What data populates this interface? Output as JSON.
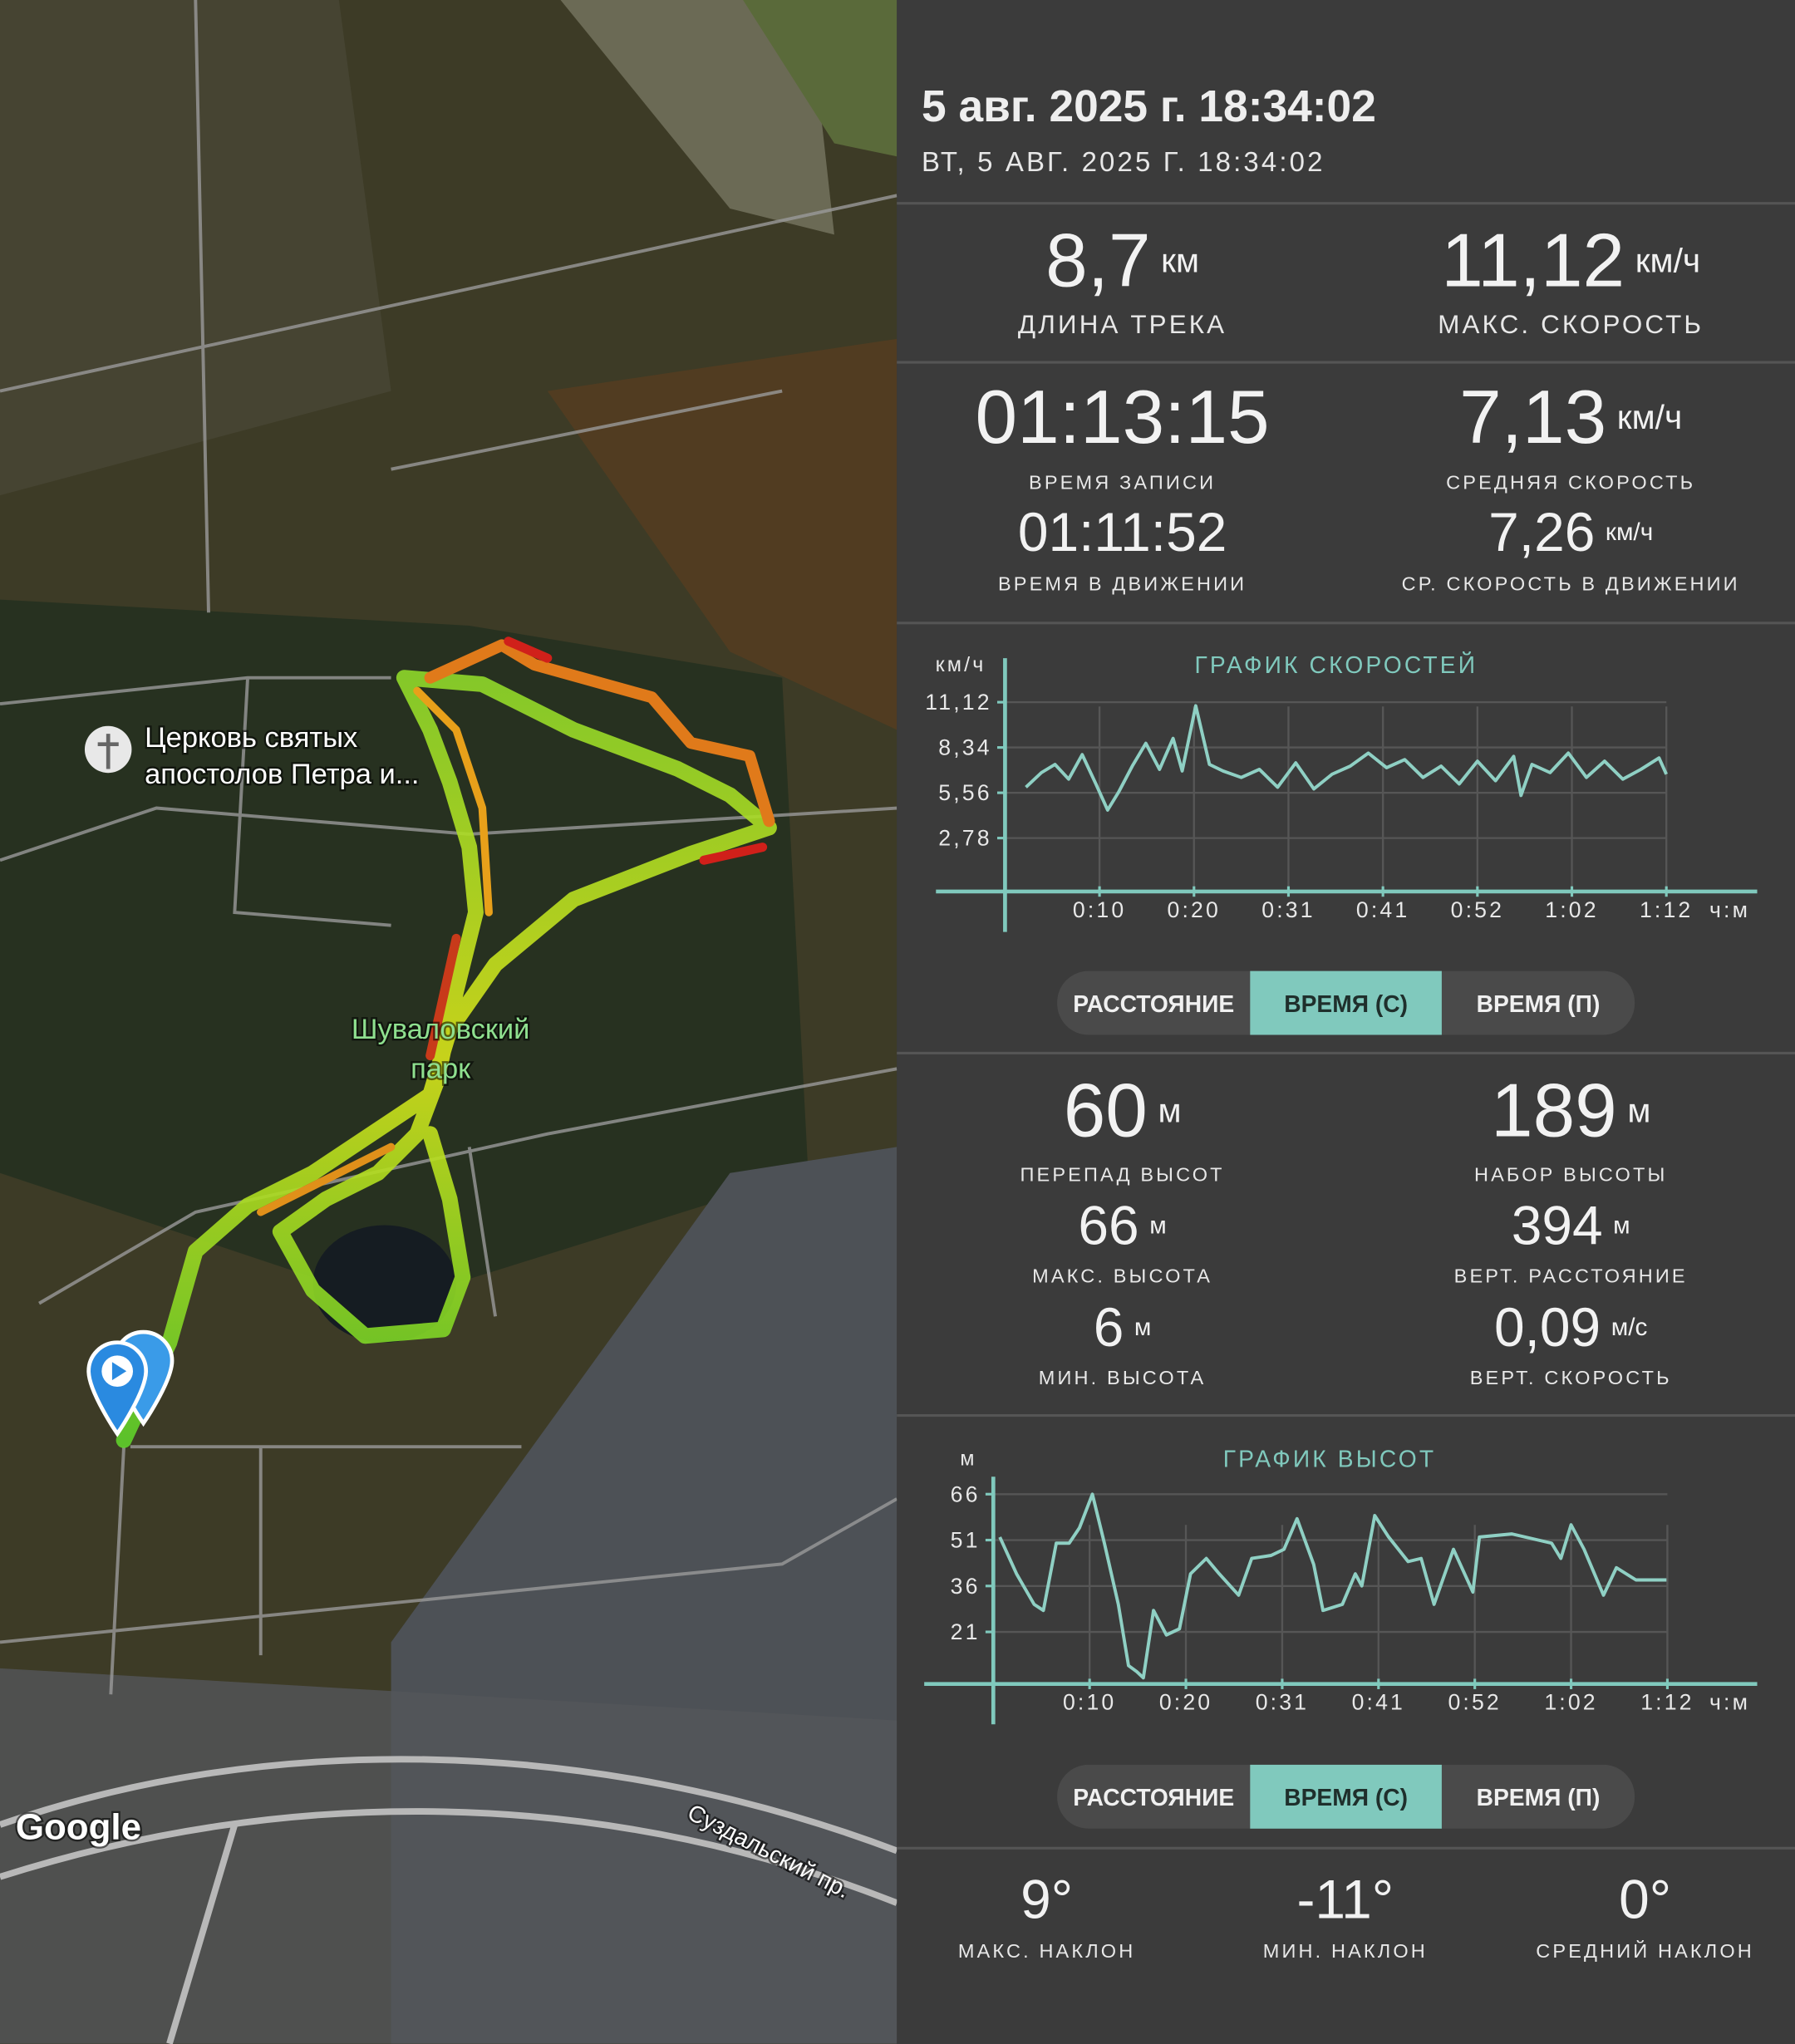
{
  "header": {
    "title": "5 авг. 2025 г. 18:34:02",
    "subtitle": "ВТ, 5 АВГ. 2025 Г. 18:34:02"
  },
  "map": {
    "labels": [
      "Церковь святых",
      "апостолов Петра и...",
      "Шуваловский",
      "парк",
      "Google",
      "Суздальский пр."
    ]
  },
  "summary": [
    {
      "value": "8,7",
      "unit": "км",
      "label": "ДЛИНА ТРЕКА"
    },
    {
      "value": "11,12",
      "unit": "км/ч",
      "label": "МАКС. СКОРОСТЬ"
    },
    {
      "value": "01:13:15",
      "label": "ВРЕМЯ ЗАПИСИ"
    },
    {
      "value": "7,13",
      "unit": "км/ч",
      "label": "СРЕДНЯЯ СКОРОСТЬ"
    },
    {
      "value": "01:11:52",
      "label": "ВРЕМЯ В ДВИЖЕНИИ"
    },
    {
      "value": "7,26",
      "unit": "км/ч",
      "label": "СР. СКОРОСТЬ В ДВИЖЕНИИ"
    }
  ],
  "elevation_stats": [
    {
      "value": "60",
      "unit": "м",
      "label": "ПЕРЕПАД ВЫСОТ"
    },
    {
      "value": "189",
      "unit": "м",
      "label": "НАБОР ВЫСОТЫ"
    },
    {
      "value": "66",
      "unit": "м",
      "label": "МАКС. ВЫСОТА"
    },
    {
      "value": "394",
      "unit": "м",
      "label": "ВЕРТ. РАССТОЯНИЕ"
    },
    {
      "value": "6",
      "unit": "м",
      "label": "МИН. ВЫСОТА"
    },
    {
      "value": "0,09",
      "unit": "м/с",
      "label": "ВЕРТ. СКОРОСТЬ"
    }
  ],
  "slope_stats": [
    {
      "value": "9°",
      "label": "МАКС. НАКЛОН"
    },
    {
      "value": "-11°",
      "label": "МИН. НАКЛОН"
    },
    {
      "value": "0°",
      "label": "СРЕДНИЙ НАКЛОН"
    }
  ],
  "toggles": [
    {
      "options": [
        "РАССТОЯНИЕ",
        "ВРЕМЯ (С)",
        "ВРЕМЯ (П)"
      ],
      "active": 1
    },
    {
      "options": [
        "РАССТОЯНИЕ",
        "ВРЕМЯ (С)",
        "ВРЕМЯ (П)"
      ],
      "active": 1
    }
  ],
  "chart_data": [
    {
      "type": "line",
      "title": "ГРАФИК СКОРОСТЕЙ",
      "y_label": "км/ч",
      "x_label": "ч:м",
      "color": "#8fd0c4",
      "grid": true,
      "xlim": [
        0,
        82.8
      ],
      "ylim": [
        -0.5,
        13.5
      ],
      "xticks": [
        {
          "value": 10.4,
          "label": "0:10"
        },
        {
          "value": 20.8,
          "label": "0:20"
        },
        {
          "value": 31.2,
          "label": "0:31"
        },
        {
          "value": 41.6,
          "label": "0:41"
        },
        {
          "value": 52,
          "label": "0:52"
        },
        {
          "value": 62.4,
          "label": "1:02"
        },
        {
          "value": 72.8,
          "label": "1:12"
        }
      ],
      "yticks": [
        {
          "value": 2.78,
          "label": "2,78"
        },
        {
          "value": 5.56,
          "label": "5,56"
        },
        {
          "value": 8.34,
          "label": "8,34"
        },
        {
          "value": 11.12,
          "label": "11,12"
        }
      ],
      "x": [
        2.3,
        4,
        5.5,
        7,
        8.5,
        10,
        11.3,
        12.5,
        14,
        15.5,
        17,
        18.5,
        19.5,
        21,
        22.5,
        24,
        26,
        28,
        30,
        32,
        34,
        36,
        38,
        40,
        42,
        44,
        46,
        48,
        50,
        52,
        54,
        56,
        56.8,
        58,
        60,
        62,
        64,
        66,
        68,
        70,
        72,
        72.8
      ],
      "values": [
        5.9,
        6.8,
        7.3,
        6.4,
        7.9,
        6.1,
        4.5,
        5.6,
        7.2,
        8.6,
        7.0,
        8.9,
        6.9,
        10.9,
        7.3,
        6.9,
        6.5,
        7.0,
        5.9,
        7.4,
        5.8,
        6.7,
        7.2,
        8.0,
        7.1,
        7.6,
        6.5,
        7.2,
        6.1,
        7.5,
        6.3,
        7.8,
        5.4,
        7.3,
        6.8,
        8.0,
        6.5,
        7.5,
        6.4,
        7.0,
        7.7,
        6.7
      ]
    },
    {
      "type": "line",
      "title": "ГРАФИК ВЫСОТ",
      "y_label": "м",
      "x_label": "ч:м",
      "color": "#8fd0c4",
      "grid": true,
      "xlim": [
        0,
        82.5
      ],
      "ylim": [
        4,
        70
      ],
      "xticks": [
        {
          "value": 10.4,
          "label": "0:10"
        },
        {
          "value": 20.8,
          "label": "0:20"
        },
        {
          "value": 31.2,
          "label": "0:31"
        },
        {
          "value": 41.6,
          "label": "0:41"
        },
        {
          "value": 52,
          "label": "0:52"
        },
        {
          "value": 62.4,
          "label": "1:02"
        },
        {
          "value": 72.8,
          "label": "1:12"
        }
      ],
      "yticks": [
        21,
        36,
        51,
        66
      ],
      "x": [
        0.7,
        2.5,
        4.4,
        5.4,
        6.8,
        8.2,
        9.3,
        10.7,
        12.0,
        13.5,
        14.6,
        15.5,
        16.2,
        17.3,
        18.7,
        20.1,
        21.3,
        23.0,
        24.4,
        26.5,
        27.9,
        30.0,
        31.4,
        32.8,
        34.6,
        35.6,
        37.7,
        39.1,
        39.8,
        41.2,
        42.7,
        44.8,
        46.2,
        47.6,
        49.7,
        51.8,
        52.5,
        56.0,
        60.3,
        61.3,
        62.4,
        63.8,
        65.9,
        67.3,
        69.4,
        72.7
      ],
      "values": [
        52,
        40,
        30,
        28,
        50,
        50,
        55,
        66,
        50,
        30,
        10,
        8,
        6,
        28,
        20,
        22,
        40,
        45,
        40,
        33,
        45,
        46,
        48,
        58,
        43,
        28,
        30,
        40,
        36,
        59,
        52,
        44,
        45,
        30,
        48,
        34,
        52,
        53,
        50,
        45,
        56,
        48,
        33,
        42,
        38,
        38
      ]
    }
  ]
}
